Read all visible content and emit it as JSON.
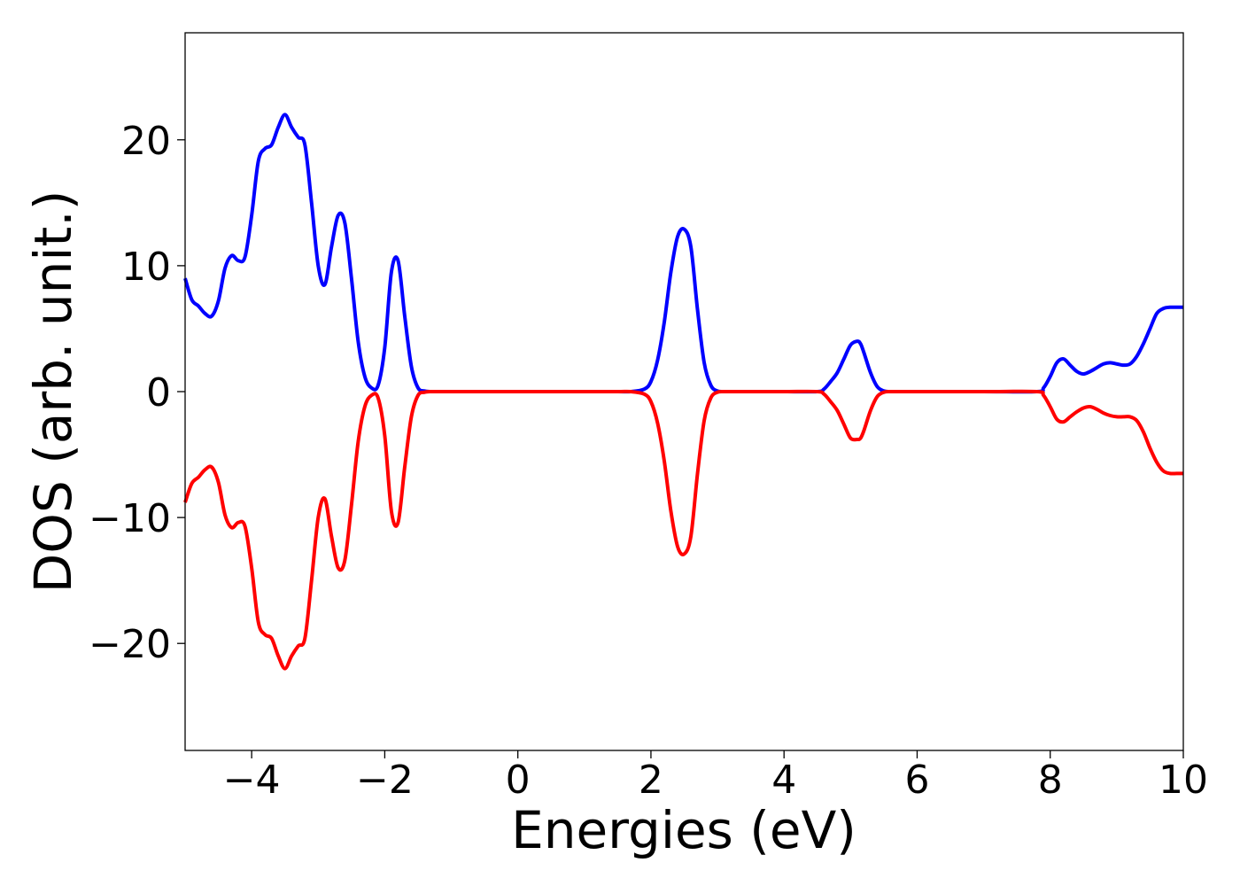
{
  "chart_data": {
    "type": "line",
    "title": "",
    "xlabel": "Energies (eV)",
    "ylabel": "DOS (arb. unit.)",
    "xlim": [
      -5,
      10
    ],
    "ylim": [
      -28.5,
      28.5
    ],
    "grid": false,
    "legend": "none",
    "xticks": [
      {
        "value": -4,
        "label": "−4"
      },
      {
        "value": -2,
        "label": "−2"
      },
      {
        "value": 0,
        "label": "0"
      },
      {
        "value": 2,
        "label": "2"
      },
      {
        "value": 4,
        "label": "4"
      },
      {
        "value": 6,
        "label": "6"
      },
      {
        "value": 8,
        "label": "8"
      },
      {
        "value": 10,
        "label": "10"
      }
    ],
    "yticks": [
      {
        "value": -20,
        "label": "−20"
      },
      {
        "value": -10,
        "label": "−10"
      },
      {
        "value": 0,
        "label": "0"
      },
      {
        "value": 10,
        "label": "10"
      },
      {
        "value": 20,
        "label": "20"
      }
    ],
    "series": [
      {
        "color": "#0000ff",
        "x": [
          -5.0,
          -4.9,
          -4.8,
          -4.7,
          -4.6,
          -4.5,
          -4.4,
          -4.3,
          -4.2,
          -4.1,
          -4.0,
          -3.9,
          -3.8,
          -3.7,
          -3.6,
          -3.5,
          -3.4,
          -3.3,
          -3.2,
          -3.1,
          -3.0,
          -2.9,
          -2.8,
          -2.7,
          -2.6,
          -2.5,
          -2.4,
          -2.3,
          -2.2,
          -2.1,
          -2.0,
          -1.9,
          -1.8,
          -1.7,
          -1.6,
          -1.5,
          -1.4,
          -1.3,
          -1.2,
          -1.1,
          -1.0,
          -0.9,
          -0.8,
          -0.7,
          -0.6,
          -0.5,
          0.0,
          1.0,
          1.5,
          1.7,
          1.9,
          2.0,
          2.1,
          2.2,
          2.3,
          2.4,
          2.5,
          2.6,
          2.7,
          2.8,
          2.9,
          3.0,
          3.1,
          3.2,
          3.4,
          4.0,
          4.5,
          4.6,
          4.7,
          4.8,
          4.9,
          5.0,
          5.1,
          5.15,
          5.2,
          5.3,
          5.4,
          5.5,
          5.6,
          5.8,
          7.0,
          7.8,
          7.9,
          8.0,
          8.1,
          8.2,
          8.3,
          8.4,
          8.5,
          8.6,
          8.7,
          8.8,
          8.9,
          9.0,
          9.1,
          9.2,
          9.3,
          9.4,
          9.5,
          9.6,
          9.7,
          9.8,
          9.9,
          10.0
        ],
        "y": [
          9.0,
          7.3,
          6.8,
          6.2,
          6.0,
          7.2,
          9.8,
          10.8,
          10.4,
          10.7,
          14.0,
          18.3,
          19.3,
          19.6,
          21.0,
          22.0,
          21.0,
          20.2,
          19.6,
          15.0,
          10.0,
          8.5,
          11.5,
          14.0,
          13.4,
          9.0,
          4.0,
          1.2,
          0.3,
          0.5,
          3.5,
          9.5,
          10.4,
          6.0,
          2.0,
          0.3,
          0.05,
          0.0,
          0.0,
          0.0,
          0.0,
          0.0,
          0.0,
          0.0,
          0.0,
          0.0,
          0.0,
          0.0,
          0.0,
          0.0,
          0.2,
          0.8,
          2.5,
          5.5,
          9.5,
          12.3,
          12.9,
          11.5,
          6.5,
          2.3,
          0.5,
          0.05,
          0.0,
          0.0,
          0.0,
          0.0,
          0.0,
          0.2,
          0.8,
          1.5,
          2.6,
          3.7,
          4.0,
          3.8,
          3.1,
          1.5,
          0.4,
          0.05,
          0.0,
          0.0,
          0.0,
          0.0,
          0.3,
          1.2,
          2.3,
          2.6,
          2.1,
          1.6,
          1.4,
          1.6,
          1.9,
          2.2,
          2.3,
          2.2,
          2.1,
          2.2,
          2.8,
          3.8,
          5.0,
          6.2,
          6.6,
          6.7,
          6.7,
          6.7
        ],
        "note_x_mapping": "x values in eV, y values in arb. units"
      },
      {
        "color": "#ff0000",
        "x": [
          -5.0,
          -4.9,
          -4.8,
          -4.7,
          -4.6,
          -4.5,
          -4.4,
          -4.3,
          -4.2,
          -4.1,
          -4.0,
          -3.9,
          -3.8,
          -3.7,
          -3.6,
          -3.5,
          -3.4,
          -3.3,
          -3.2,
          -3.1,
          -3.0,
          -2.9,
          -2.8,
          -2.7,
          -2.6,
          -2.5,
          -2.4,
          -2.3,
          -2.2,
          -2.1,
          -2.0,
          -1.9,
          -1.8,
          -1.7,
          -1.6,
          -1.5,
          -1.4,
          -1.3,
          -1.2,
          -1.1,
          -1.0,
          -0.9,
          -0.8,
          -0.7,
          -0.6,
          -0.5,
          0.0,
          1.0,
          1.5,
          1.7,
          1.9,
          2.0,
          2.1,
          2.2,
          2.3,
          2.4,
          2.5,
          2.6,
          2.7,
          2.8,
          2.9,
          3.0,
          3.1,
          3.2,
          3.4,
          4.0,
          4.5,
          4.6,
          4.7,
          4.8,
          4.9,
          5.0,
          5.1,
          5.15,
          5.2,
          5.3,
          5.4,
          5.5,
          5.6,
          5.8,
          7.0,
          7.8,
          7.9,
          8.0,
          8.1,
          8.2,
          8.3,
          8.4,
          8.5,
          8.6,
          8.7,
          8.8,
          8.9,
          9.0,
          9.1,
          9.2,
          9.3,
          9.4,
          9.5,
          9.6,
          9.7,
          9.8,
          9.9,
          10.0
        ],
        "y": [
          -8.8,
          -7.3,
          -6.8,
          -6.2,
          -6.0,
          -7.2,
          -9.8,
          -10.8,
          -10.4,
          -10.7,
          -14.0,
          -18.3,
          -19.3,
          -19.6,
          -21.0,
          -22.0,
          -21.0,
          -20.2,
          -19.6,
          -15.0,
          -10.0,
          -8.5,
          -11.5,
          -14.0,
          -13.4,
          -9.0,
          -4.0,
          -1.2,
          -0.3,
          -0.5,
          -3.5,
          -9.5,
          -10.4,
          -6.0,
          -2.0,
          -0.3,
          -0.05,
          0.0,
          0.0,
          0.0,
          0.0,
          0.0,
          0.0,
          0.0,
          0.0,
          0.0,
          0.0,
          0.0,
          0.0,
          0.0,
          -0.2,
          -0.8,
          -2.5,
          -5.5,
          -9.5,
          -12.3,
          -12.9,
          -11.5,
          -6.5,
          -2.3,
          -0.5,
          -0.05,
          0.0,
          0.0,
          0.0,
          0.0,
          0.0,
          -0.2,
          -0.8,
          -1.5,
          -2.6,
          -3.7,
          -3.8,
          -3.7,
          -3.1,
          -1.5,
          -0.4,
          -0.05,
          0.0,
          0.0,
          0.0,
          0.0,
          -0.3,
          -1.2,
          -2.2,
          -2.4,
          -2.0,
          -1.6,
          -1.3,
          -1.2,
          -1.4,
          -1.7,
          -1.9,
          -2.0,
          -2.0,
          -2.0,
          -2.3,
          -3.2,
          -4.5,
          -5.6,
          -6.3,
          -6.5,
          -6.5,
          -6.5
        ]
      }
    ]
  }
}
